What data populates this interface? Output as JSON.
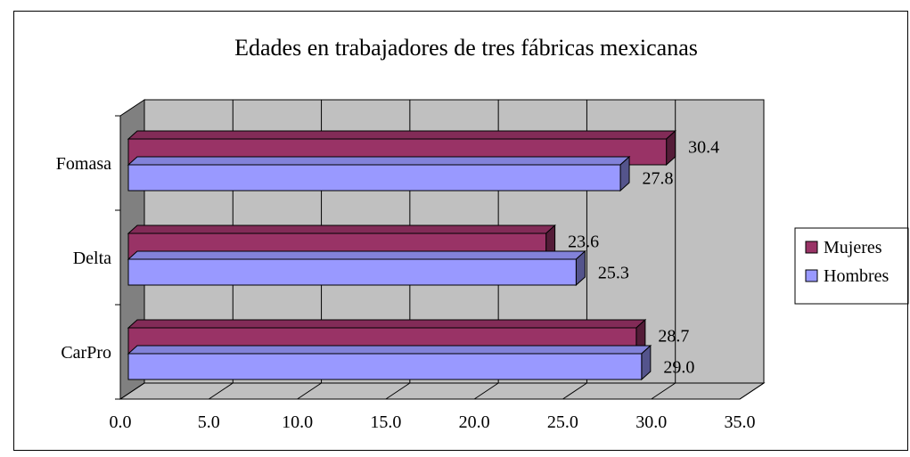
{
  "chart_data": {
    "type": "bar",
    "orientation": "horizontal",
    "three_d": true,
    "title": "Edades en trabajadores de tres fábricas mexicanas",
    "categories": [
      "Fomasa",
      "Delta",
      "CarPro"
    ],
    "series": [
      {
        "name": "Mujeres",
        "values": [
          30.4,
          23.6,
          28.7
        ],
        "color": "#993366"
      },
      {
        "name": "Hombres",
        "values": [
          27.8,
          25.3,
          29.0
        ],
        "color": "#9999ff"
      }
    ],
    "xlim": [
      0,
      35
    ],
    "xticks": [
      "0.0",
      "5.0",
      "10.0",
      "15.0",
      "20.0",
      "25.0",
      "30.0",
      "35.0"
    ],
    "xlabel": "",
    "ylabel": "",
    "grid": true,
    "legend_position": "right",
    "wall_color": "#c0c0c0",
    "side_wall_color": "#808080"
  }
}
